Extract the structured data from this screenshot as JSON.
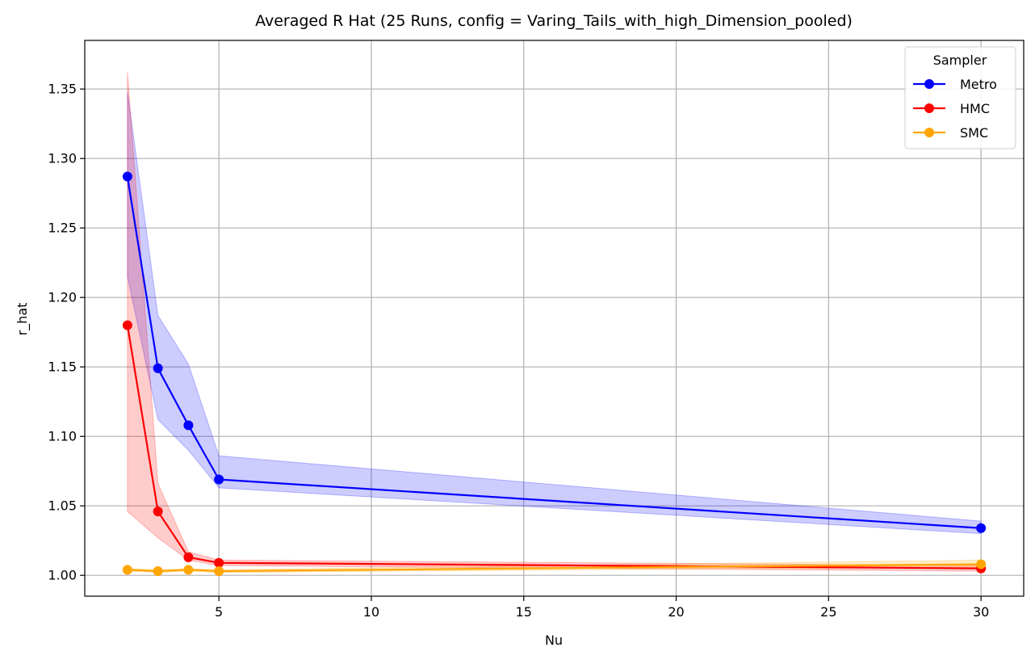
{
  "chart_data": {
    "type": "line",
    "title": "Averaged R Hat (25 Runs, config = Varing_Tails_with_high_Dimension_pooled)",
    "xlabel": "Nu",
    "ylabel": "r_hat",
    "xlim": [
      0.6,
      31.4
    ],
    "ylim": [
      0.985,
      1.385
    ],
    "xticks": [
      5,
      10,
      15,
      20,
      25,
      30
    ],
    "yticks": [
      1.0,
      1.05,
      1.1,
      1.15,
      1.2,
      1.25,
      1.3,
      1.35
    ],
    "grid": true,
    "legend": {
      "title": "Sampler",
      "placement": "top-right"
    },
    "x": [
      2,
      3,
      4,
      5,
      30
    ],
    "series": [
      {
        "name": "Metro",
        "color": "#0000ff",
        "values": [
          1.287,
          1.149,
          1.108,
          1.069,
          1.034
        ],
        "lower": [
          1.215,
          1.112,
          1.09,
          1.063,
          1.03
        ],
        "upper": [
          1.348,
          1.187,
          1.152,
          1.086,
          1.039
        ]
      },
      {
        "name": "HMC",
        "color": "#ff0000",
        "values": [
          1.18,
          1.046,
          1.013,
          1.009,
          1.005
        ],
        "lower": [
          1.046,
          1.027,
          1.011,
          1.007,
          1.003
        ],
        "upper": [
          1.362,
          1.066,
          1.017,
          1.011,
          1.007
        ]
      },
      {
        "name": "SMC",
        "color": "#ffa500",
        "values": [
          1.004,
          1.003,
          1.004,
          1.003,
          1.008
        ],
        "lower": [
          1.003,
          1.002,
          1.003,
          1.002,
          1.006
        ],
        "upper": [
          1.005,
          1.004,
          1.005,
          1.004,
          1.011
        ]
      }
    ]
  }
}
